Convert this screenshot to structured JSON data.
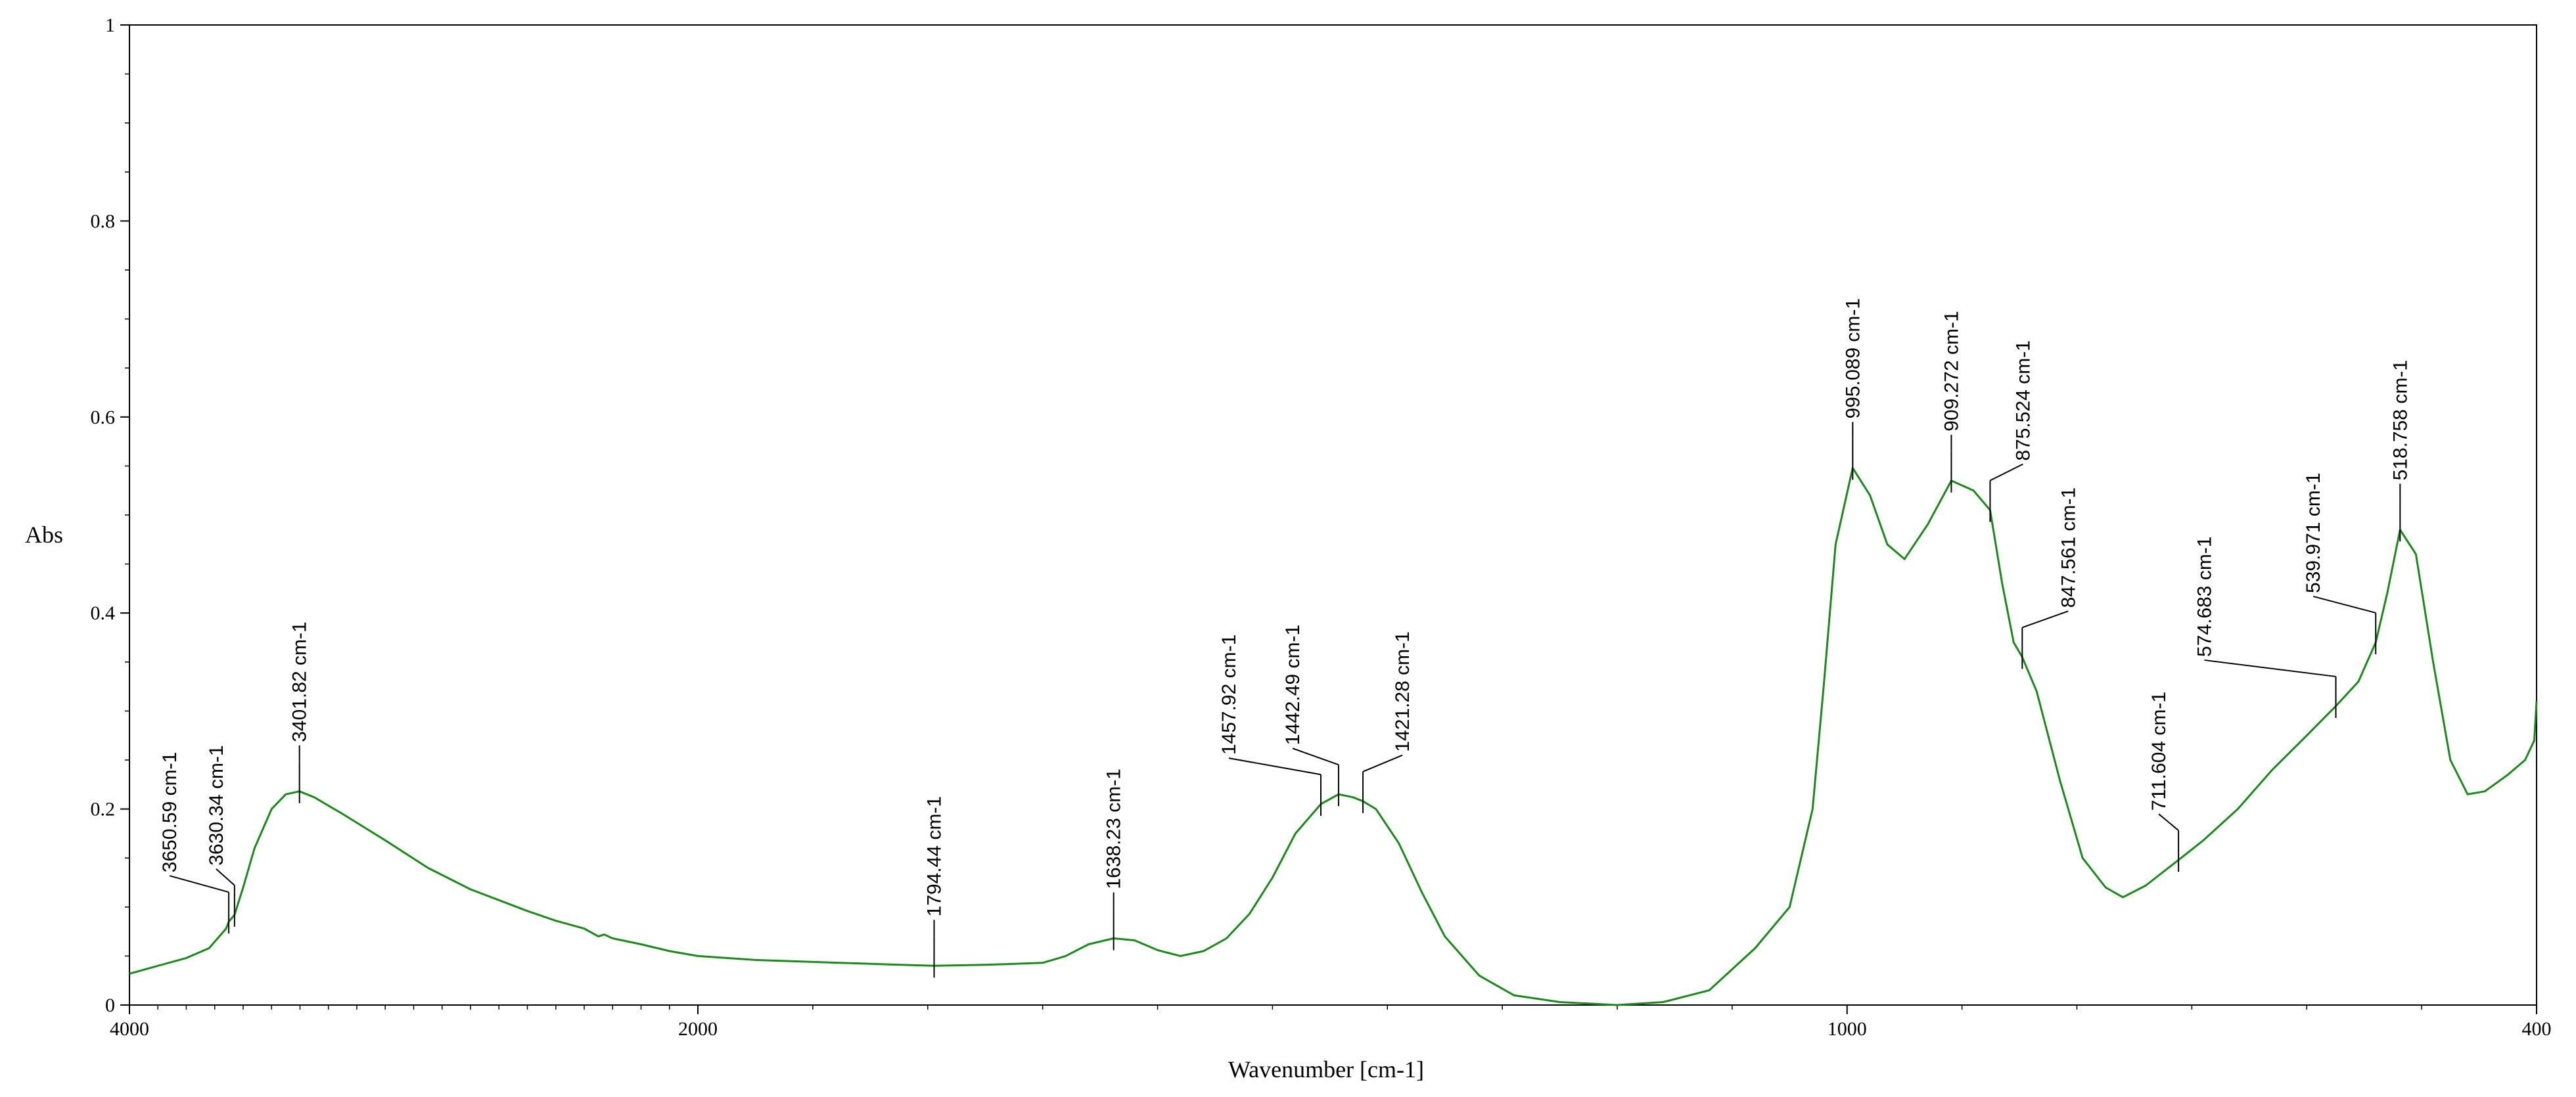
{
  "chart_data": {
    "type": "line",
    "title": "",
    "xlabel": "Wavenumber [cm-1]",
    "ylabel": "Abs",
    "x_reversed": true,
    "x_scale": "piecewise-linear (4000–2000 and 2000–400 use different scales)",
    "x_ticks": [
      4000,
      2000,
      1000,
      400
    ],
    "x_tick_labels": [
      "4000",
      "2000",
      "1000",
      "400"
    ],
    "ylim": [
      0,
      1
    ],
    "y_ticks": [
      0,
      0.2,
      0.4,
      0.6,
      0.8,
      1
    ],
    "y_tick_labels": [
      "0",
      "0.2",
      "0.4",
      "0.6",
      "0.8",
      "1"
    ],
    "grid": false,
    "line_color": "#1a8a1a",
    "series": [
      {
        "points": [
          [
            4000,
            0.032
          ],
          [
            3900,
            0.04
          ],
          [
            3800,
            0.048
          ],
          [
            3720,
            0.058
          ],
          [
            3660,
            0.078
          ],
          [
            3650.59,
            0.085
          ],
          [
            3630.34,
            0.092
          ],
          [
            3600,
            0.12
          ],
          [
            3560,
            0.16
          ],
          [
            3500,
            0.2
          ],
          [
            3450,
            0.215
          ],
          [
            3401.82,
            0.218
          ],
          [
            3350,
            0.212
          ],
          [
            3250,
            0.195
          ],
          [
            3100,
            0.168
          ],
          [
            2950,
            0.14
          ],
          [
            2800,
            0.118
          ],
          [
            2600,
            0.096
          ],
          [
            2500,
            0.086
          ],
          [
            2400,
            0.078
          ],
          [
            2350,
            0.07
          ],
          [
            2330,
            0.072
          ],
          [
            2300,
            0.068
          ],
          [
            2200,
            0.062
          ],
          [
            2100,
            0.055
          ],
          [
            2000,
            0.05
          ],
          [
            1950,
            0.046
          ],
          [
            1900,
            0.044
          ],
          [
            1850,
            0.042
          ],
          [
            1794.44,
            0.04
          ],
          [
            1750,
            0.041
          ],
          [
            1700,
            0.043
          ],
          [
            1680,
            0.05
          ],
          [
            1660,
            0.062
          ],
          [
            1638.23,
            0.068
          ],
          [
            1620,
            0.066
          ],
          [
            1600,
            0.056
          ],
          [
            1580,
            0.05
          ],
          [
            1560,
            0.055
          ],
          [
            1540,
            0.068
          ],
          [
            1520,
            0.093
          ],
          [
            1500,
            0.13
          ],
          [
            1480,
            0.175
          ],
          [
            1457.92,
            0.205
          ],
          [
            1442.49,
            0.215
          ],
          [
            1430,
            0.212
          ],
          [
            1421.28,
            0.208
          ],
          [
            1410,
            0.2
          ],
          [
            1390,
            0.165
          ],
          [
            1370,
            0.115
          ],
          [
            1350,
            0.07
          ],
          [
            1320,
            0.03
          ],
          [
            1290,
            0.01
          ],
          [
            1250,
            0.003
          ],
          [
            1200,
            0.0
          ],
          [
            1160,
            0.003
          ],
          [
            1120,
            0.015
          ],
          [
            1080,
            0.058
          ],
          [
            1050,
            0.1
          ],
          [
            1030,
            0.2
          ],
          [
            1020,
            0.33
          ],
          [
            1010,
            0.47
          ],
          [
            995.089,
            0.548
          ],
          [
            980,
            0.52
          ],
          [
            965,
            0.47
          ],
          [
            950,
            0.455
          ],
          [
            930,
            0.49
          ],
          [
            909.272,
            0.535
          ],
          [
            890,
            0.525
          ],
          [
            875.524,
            0.505
          ],
          [
            865,
            0.43
          ],
          [
            855,
            0.37
          ],
          [
            847.561,
            0.355
          ],
          [
            835,
            0.32
          ],
          [
            815,
            0.23
          ],
          [
            795,
            0.15
          ],
          [
            775,
            0.12
          ],
          [
            760,
            0.11
          ],
          [
            740,
            0.122
          ],
          [
            711.604,
            0.148
          ],
          [
            690,
            0.168
          ],
          [
            660,
            0.2
          ],
          [
            630,
            0.24
          ],
          [
            600,
            0.275
          ],
          [
            574.683,
            0.305
          ],
          [
            555,
            0.33
          ],
          [
            539.971,
            0.37
          ],
          [
            530,
            0.42
          ],
          [
            518.758,
            0.485
          ],
          [
            505,
            0.46
          ],
          [
            490,
            0.35
          ],
          [
            475,
            0.25
          ],
          [
            460,
            0.215
          ],
          [
            445,
            0.218
          ],
          [
            425,
            0.235
          ],
          [
            410,
            0.25
          ],
          [
            402,
            0.27
          ],
          [
            400,
            0.31
          ]
        ]
      }
    ],
    "peak_annotations": [
      {
        "x": 3650.59,
        "label": "3650.59 cm-1"
      },
      {
        "x": 3630.34,
        "label": "3630.34 cm-1"
      },
      {
        "x": 3401.82,
        "label": "3401.82 cm-1"
      },
      {
        "x": 1794.44,
        "label": "1794.44 cm-1"
      },
      {
        "x": 1638.23,
        "label": "1638.23 cm-1"
      },
      {
        "x": 1457.92,
        "label": "1457.92 cm-1"
      },
      {
        "x": 1442.49,
        "label": "1442.49 cm-1"
      },
      {
        "x": 1421.28,
        "label": "1421.28 cm-1"
      },
      {
        "x": 995.089,
        "label": "995.089 cm-1"
      },
      {
        "x": 909.272,
        "label": "909.272 cm-1"
      },
      {
        "x": 875.524,
        "label": "875.524 cm-1"
      },
      {
        "x": 847.561,
        "label": "847.561 cm-1"
      },
      {
        "x": 711.604,
        "label": "711.604 cm-1"
      },
      {
        "x": 574.683,
        "label": "574.683 cm-1"
      },
      {
        "x": 539.971,
        "label": "539.971 cm-1"
      },
      {
        "x": 518.758,
        "label": "518.758 cm-1"
      }
    ]
  }
}
